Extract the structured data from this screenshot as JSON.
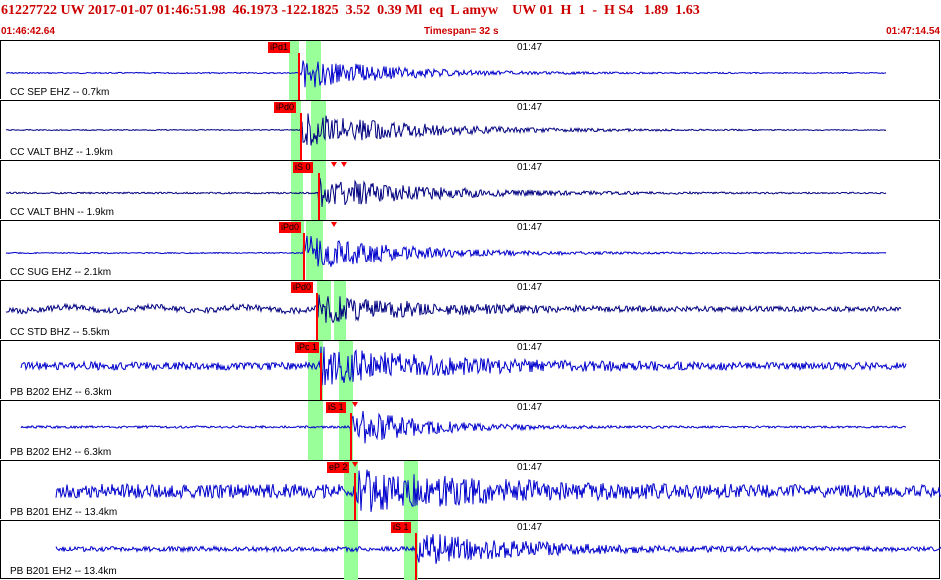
{
  "header": {
    "summary": "61227722 UW 2017-01-07 01:46:51.98  46.1973 -122.1825  3.52  0.39 Ml  eq  L amyw    UW 01  H  1  -  H S4   1.89  1.63",
    "start_time": "01:46:42.64",
    "timespan": "Timespan=  32 s",
    "end_time": "01:47:14.54"
  },
  "colors": {
    "header_text": "#cc0000",
    "trace_blue": "#0000cc",
    "trace_navy": "#000080",
    "pick_window": "#99ff99",
    "pick_marker": "#ff0000",
    "grid": "#000000"
  },
  "traces": [
    {
      "label": "CC SEP EHZ -- 0.7km",
      "time": "01:47",
      "picks": [
        "iPd1"
      ],
      "color_name": "blue"
    },
    {
      "label": "CC VALT BHZ -- 1.9km",
      "time": "01:47",
      "picks": [
        "iPd0"
      ],
      "color_name": "navy"
    },
    {
      "label": "CC VALT BHN -- 1.9km",
      "time": "01:47",
      "picks": [
        "iS 0"
      ],
      "color_name": "navy"
    },
    {
      "label": "CC SUG EHZ -- 2.1km",
      "time": "01:47",
      "picks": [
        "iPd0"
      ],
      "color_name": "blue"
    },
    {
      "label": "CC STD BHZ -- 5.5km",
      "time": "01:47",
      "picks": [
        "iPd0"
      ],
      "color_name": "navy"
    },
    {
      "label": "PB B202 EHZ -- 6.3km",
      "time": "01:47",
      "picks": [
        "iPc 1"
      ],
      "color_name": "blue"
    },
    {
      "label": "PB B202 EH2 -- 6.3km",
      "time": "01:47",
      "picks": [
        "iS 1"
      ],
      "color_name": "blue"
    },
    {
      "label": "PB B201 EHZ -- 13.4km",
      "time": "01:47",
      "picks": [
        "eP 2"
      ],
      "color_name": "blue"
    },
    {
      "label": "PB B201 EH2 -- 13.4km",
      "time": "01:47",
      "picks": [
        "iS 1"
      ],
      "color_name": "blue"
    }
  ]
}
